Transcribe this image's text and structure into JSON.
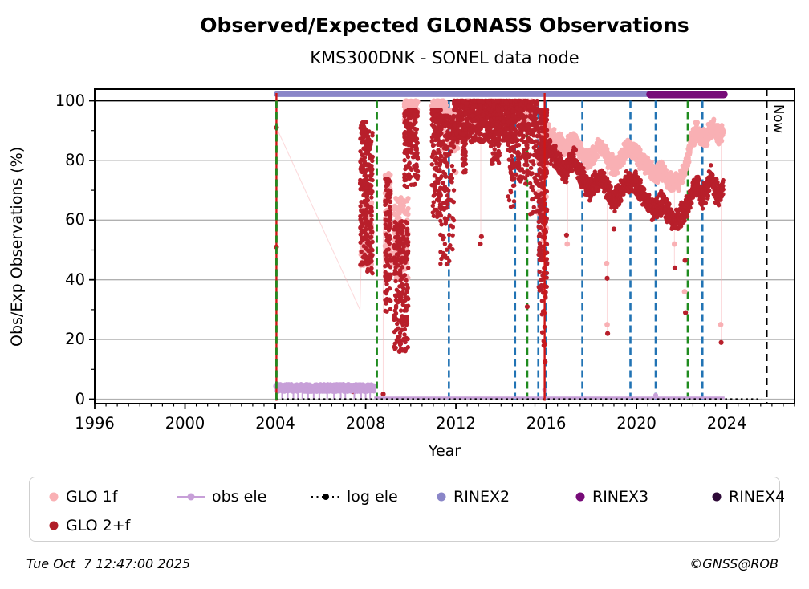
{
  "footer": {
    "timestamp": "Tue Oct  7 12:47:00 2025",
    "credit": "©GNSS@ROB"
  },
  "legend": {
    "items": [
      {
        "label": "GLO 1f",
        "marker": "dot",
        "color": "#f9b0b4",
        "col": 0,
        "row": 0
      },
      {
        "label": "GLO 2+f",
        "marker": "dot",
        "color": "#b01d28",
        "col": 0,
        "row": 1
      },
      {
        "label": "obs ele",
        "marker": "line-dot",
        "color": "#c79fd8",
        "col": 1,
        "row": 0
      },
      {
        "label": "log ele",
        "marker": "dotted-line-dot",
        "color": "#000000",
        "col": 2,
        "row": 0
      },
      {
        "label": "RINEX2",
        "marker": "dot",
        "color": "#8a86c8",
        "col": 3,
        "row": 0
      },
      {
        "label": "RINEX3",
        "marker": "dot",
        "color": "#770b78",
        "col": 4,
        "row": 0
      },
      {
        "label": "RINEX4",
        "marker": "dot",
        "color": "#2e0a38",
        "col": 5,
        "row": 0
      }
    ]
  },
  "chart_data": {
    "type": "scatter",
    "title": "Observed/Expected GLONASS Observations",
    "subtitle": "KMS300DNK - SONEL data node",
    "xlabel": "Year",
    "ylabel": "Obs/Exp Observations (%)",
    "xlim": [
      1996,
      2027
    ],
    "ylim": [
      -1.5,
      104
    ],
    "xticks": [
      1996,
      2000,
      2004,
      2008,
      2012,
      2016,
      2020,
      2024
    ],
    "x_minor_step": 0.5,
    "yticks": [
      0,
      20,
      40,
      60,
      80,
      100
    ],
    "y_minor_step": 10,
    "grid": "horizontal",
    "grid_color": "#b0b0b0",
    "hline_100": {
      "y": 100,
      "color": "#000000"
    },
    "legend_position": "below",
    "now_marker": {
      "year": 2025.77,
      "label": "Now",
      "color": "#000000",
      "style": "dashed"
    },
    "vlines": [
      {
        "year": 2004.05,
        "color": "#1f8b1f",
        "style": "dashed"
      },
      {
        "year": 2008.5,
        "color": "#1f8b1f",
        "style": "dashed"
      },
      {
        "year": 2011.69,
        "color": "#2173b4",
        "style": "dashed"
      },
      {
        "year": 2014.62,
        "color": "#2173b4",
        "style": "dashed"
      },
      {
        "year": 2015.16,
        "color": "#1f8b1f",
        "style": "dashed"
      },
      {
        "year": 2015.65,
        "color": "#2173b4",
        "style": "dashed"
      },
      {
        "year": 2016.0,
        "color": "#2173b4",
        "style": "dashed"
      },
      {
        "year": 2017.6,
        "color": "#2173b4",
        "style": "dashed"
      },
      {
        "year": 2019.73,
        "color": "#2173b4",
        "style": "dashed"
      },
      {
        "year": 2020.85,
        "color": "#2173b4",
        "style": "dashed"
      },
      {
        "year": 2022.27,
        "color": "#1f8b1f",
        "style": "dashed"
      },
      {
        "year": 2022.92,
        "color": "#2173b4",
        "style": "dashed"
      }
    ],
    "red_vlines": [
      {
        "year": 2004.05,
        "color": "#d01616",
        "style": "solid"
      },
      {
        "year": 2015.93,
        "color": "#d01616",
        "style": "solid"
      }
    ],
    "rinex_bars": [
      {
        "name": "RINEX2",
        "start": 2004.05,
        "end": 2020.68,
        "y": 102.2,
        "color": "#8a86c8",
        "lw": 7
      },
      {
        "name": "RINEX3",
        "start": 2020.6,
        "end": 2023.87,
        "y": 102.1,
        "color": "#770b78",
        "lw": 9.5
      }
    ],
    "obs_ele": {
      "color": "#c79fd8",
      "band": {
        "start": 2004.05,
        "end": 2008.38,
        "ymin": 2.5,
        "ymax": 5.0,
        "n": 650
      },
      "strands": [
        2004.3,
        2004.55,
        2004.8,
        2005.0,
        2005.2,
        2005.45,
        2005.7,
        2005.95,
        2006.3,
        2006.6,
        2006.9,
        2007.1,
        2007.5,
        2007.8,
        2008.0,
        2008.2
      ],
      "strand_top": 3.0,
      "zero_line": {
        "start": 2008.38,
        "end": 2023.9,
        "y": 0.45
      },
      "spikes": [
        {
          "year": 2015.93,
          "top": 3.2
        },
        {
          "year": 2020.85,
          "top": 1.3
        }
      ],
      "start_marker": {
        "year": 2004.05,
        "y": 4.4
      }
    },
    "log_ele": {
      "color": "#000000",
      "y": 0,
      "start": 2004.05,
      "end": 2025.55,
      "style": "dotted"
    },
    "series": {
      "glo1f": {
        "name": "GLO 1f",
        "color": "#f9b0b4",
        "clusters": [
          [
            2007.78,
            2008.28,
            44,
            66,
            90,
            1
          ],
          [
            2008.85,
            2009.12,
            45,
            76,
            70,
            1
          ],
          [
            2009.25,
            2009.9,
            40,
            68,
            150,
            1
          ],
          [
            2009.7,
            2010.32,
            93,
            100,
            90,
            1.6
          ],
          [
            2010.92,
            2011.6,
            94,
            100,
            80,
            1.6
          ],
          [
            2011.45,
            2012.15,
            83,
            97,
            110,
            1.3
          ],
          [
            2011.9,
            2014.65,
            92,
            100,
            420,
            1.8
          ],
          [
            2014.6,
            2015.4,
            93,
            100,
            110,
            1.8
          ],
          [
            2015.65,
            2016.03,
            50,
            97,
            55,
            1
          ]
        ],
        "band": {
          "spread": 3.5,
          "step": 0.012,
          "waypoints": [
            [
              2016.05,
              89
            ],
            [
              2016.3,
              88
            ],
            [
              2016.6,
              86
            ],
            [
              2016.85,
              84
            ],
            [
              2017.1,
              87
            ],
            [
              2017.35,
              85
            ],
            [
              2017.6,
              82
            ],
            [
              2017.85,
              80
            ],
            [
              2018.1,
              82
            ],
            [
              2018.35,
              85
            ],
            [
              2018.6,
              82
            ],
            [
              2018.85,
              79
            ],
            [
              2019.1,
              78
            ],
            [
              2019.35,
              81
            ],
            [
              2019.6,
              84
            ],
            [
              2019.85,
              83
            ],
            [
              2020.1,
              81
            ],
            [
              2020.35,
              79
            ],
            [
              2020.6,
              77
            ],
            [
              2020.85,
              75
            ],
            [
              2021.1,
              77
            ],
            [
              2021.35,
              74
            ],
            [
              2021.6,
              72
            ],
            [
              2021.85,
              73
            ],
            [
              2022.05,
              75
            ],
            [
              2022.25,
              80
            ],
            [
              2022.45,
              87
            ],
            [
              2022.65,
              90
            ],
            [
              2022.85,
              88
            ],
            [
              2023.05,
              87
            ],
            [
              2023.25,
              90
            ],
            [
              2023.45,
              91
            ],
            [
              2023.65,
              88
            ],
            [
              2023.85,
              90
            ]
          ]
        },
        "outliers": [
          [
            2012.0,
            76
          ],
          [
            2016.93,
            52
          ],
          [
            2018.68,
            45.5
          ],
          [
            2018.7,
            25
          ],
          [
            2021.68,
            52
          ],
          [
            2022.13,
            36
          ],
          [
            2023.73,
            25
          ]
        ],
        "connect_line": [
          [
            2004.05,
            91
          ],
          [
            2007.75,
            30
          ],
          [
            2007.8,
            45
          ]
        ],
        "droplines": [
          [
            2008.78,
            60,
            1.7
          ],
          [
            2013.1,
            93,
            52
          ],
          [
            2016.95,
            82,
            52
          ],
          [
            2018.7,
            80,
            22
          ],
          [
            2021.68,
            72,
            44
          ],
          [
            2022.15,
            74,
            29
          ],
          [
            2023.75,
            87,
            19
          ]
        ]
      },
      "glo2f": {
        "name": "GLO 2+f",
        "color": "#b81f2b",
        "clusters": [
          [
            2007.75,
            2008.08,
            45,
            93,
            170,
            1.2
          ],
          [
            2008.05,
            2008.32,
            41,
            90,
            130,
            1.2
          ],
          [
            2008.85,
            2009.12,
            29,
            74,
            110,
            1.1
          ],
          [
            2009.25,
            2009.9,
            16,
            60,
            230,
            1
          ],
          [
            2009.7,
            2010.32,
            71,
            97,
            170,
            1.4
          ],
          [
            2010.92,
            2011.35,
            60,
            97,
            150,
            1.5
          ],
          [
            2011.3,
            2011.92,
            45,
            95,
            170,
            1.7
          ],
          [
            2011.9,
            2014.65,
            86,
            100,
            850,
            2.0
          ],
          [
            2012.28,
            2012.45,
            76,
            92,
            45,
            1
          ],
          [
            2013.5,
            2013.95,
            78,
            95,
            60,
            1
          ],
          [
            2014.3,
            2014.6,
            64,
            95,
            70,
            1.3
          ],
          [
            2014.62,
            2015.18,
            72,
            100,
            170,
            1.9
          ],
          [
            2015.2,
            2015.62,
            62,
            100,
            120,
            2.0
          ],
          [
            2015.65,
            2016.05,
            35,
            97,
            260,
            1.4
          ],
          [
            2015.8,
            2016.02,
            12,
            35,
            12,
            1
          ]
        ],
        "band": {
          "spread": 4.5,
          "step": 0.012,
          "waypoints": [
            [
              2016.05,
              84
            ],
            [
              2016.3,
              82
            ],
            [
              2016.6,
              79
            ],
            [
              2016.85,
              75
            ],
            [
              2017.0,
              79
            ],
            [
              2017.25,
              81
            ],
            [
              2017.5,
              76
            ],
            [
              2017.75,
              71
            ],
            [
              2018.0,
              70
            ],
            [
              2018.2,
              73
            ],
            [
              2018.45,
              75
            ],
            [
              2018.7,
              71
            ],
            [
              2018.95,
              66
            ],
            [
              2019.15,
              68
            ],
            [
              2019.4,
              71
            ],
            [
              2019.65,
              73
            ],
            [
              2019.9,
              73
            ],
            [
              2020.15,
              70
            ],
            [
              2020.4,
              67
            ],
            [
              2020.65,
              64
            ],
            [
              2020.9,
              64
            ],
            [
              2021.15,
              66
            ],
            [
              2021.4,
              63
            ],
            [
              2021.65,
              60
            ],
            [
              2021.9,
              61
            ],
            [
              2022.1,
              63
            ],
            [
              2022.3,
              66
            ],
            [
              2022.5,
              70
            ],
            [
              2022.7,
              72
            ],
            [
              2022.9,
              67
            ],
            [
              2023.1,
              70
            ],
            [
              2023.3,
              74
            ],
            [
              2023.5,
              70
            ],
            [
              2023.7,
              69
            ],
            [
              2023.85,
              72
            ]
          ]
        },
        "outliers": [
          [
            2004.05,
            91
          ],
          [
            2004.05,
            51
          ],
          [
            2007.45,
            2.5
          ],
          [
            2008.78,
            1.7
          ],
          [
            2009.5,
            16
          ],
          [
            2013.08,
            52
          ],
          [
            2013.13,
            54.5
          ],
          [
            2015.16,
            31
          ],
          [
            2015.9,
            18
          ],
          [
            2015.95,
            12.5
          ],
          [
            2016.9,
            55
          ],
          [
            2018.7,
            40.5
          ],
          [
            2018.72,
            22
          ],
          [
            2019.0,
            57
          ],
          [
            2021.7,
            44
          ],
          [
            2022.15,
            46.5
          ],
          [
            2022.17,
            29
          ],
          [
            2023.75,
            19
          ]
        ]
      }
    }
  }
}
